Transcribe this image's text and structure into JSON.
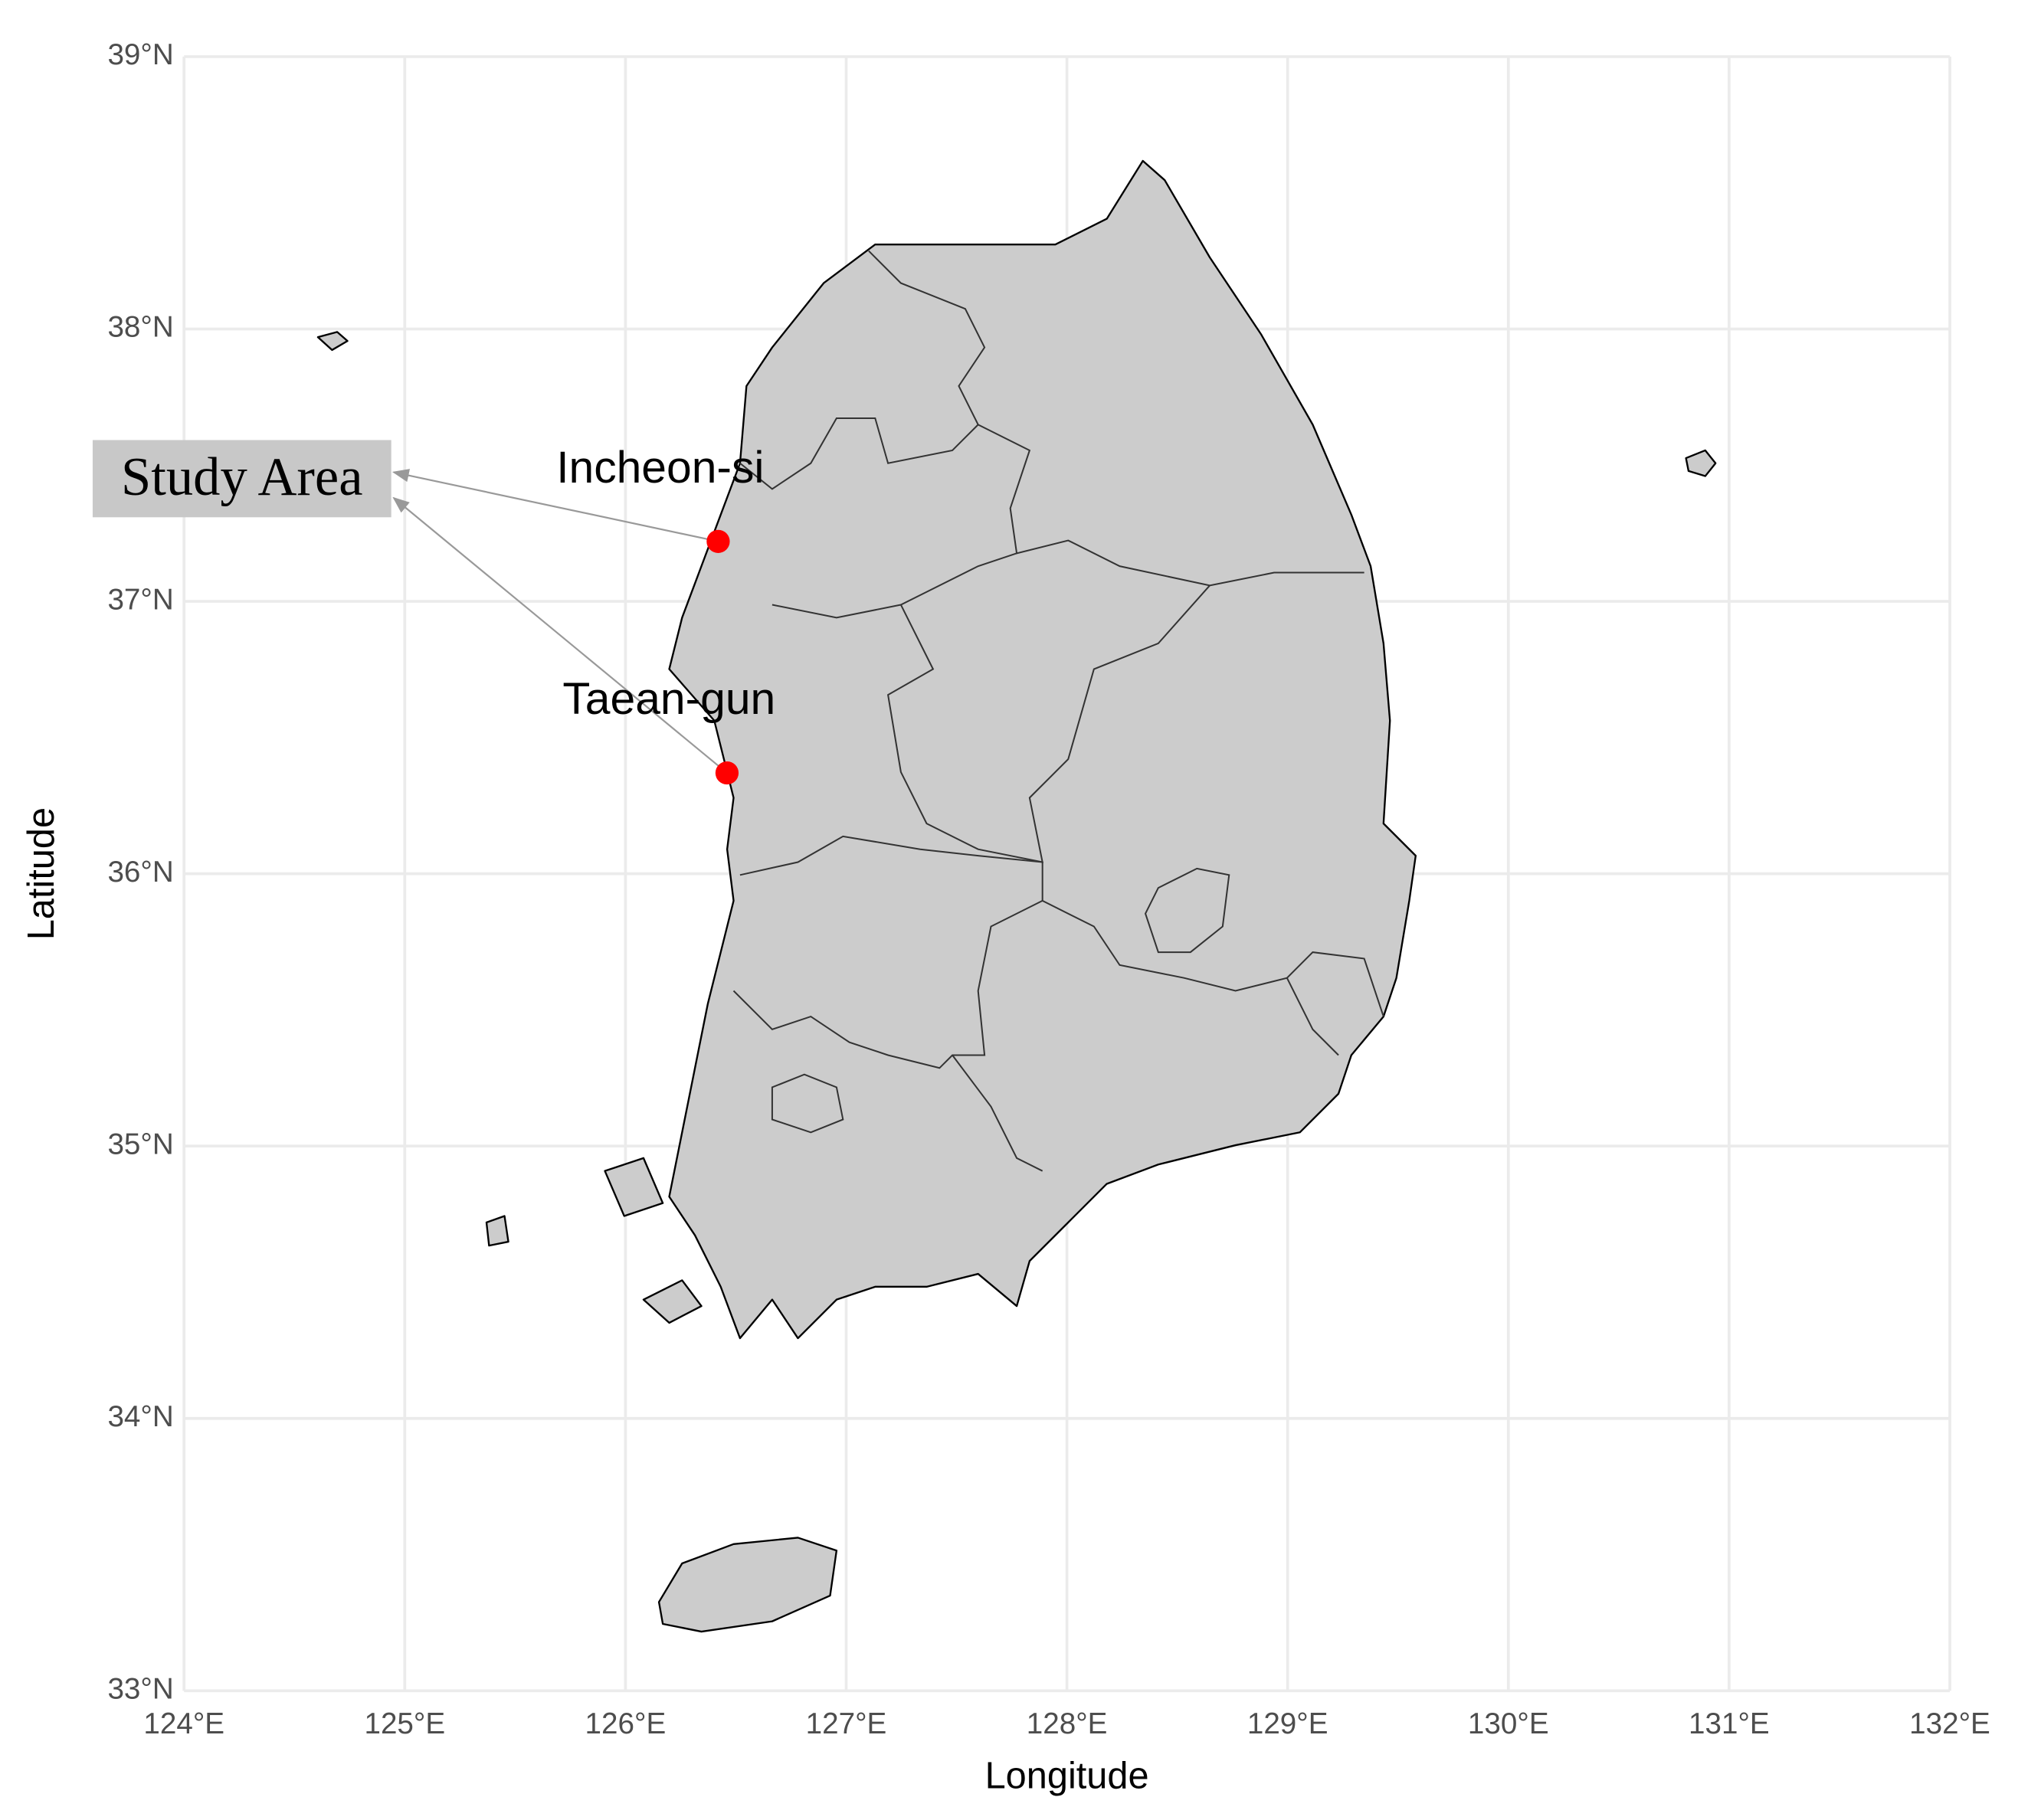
{
  "chart_data": {
    "type": "map",
    "xlabel": "Longitude",
    "ylabel": "Latitude",
    "xlim": [
      124,
      132
    ],
    "ylim": [
      33,
      39
    ],
    "xticks": [
      {
        "value": 124,
        "label": "124°E"
      },
      {
        "value": 125,
        "label": "125°E"
      },
      {
        "value": 126,
        "label": "126°E"
      },
      {
        "value": 127,
        "label": "127°E"
      },
      {
        "value": 128,
        "label": "128°E"
      },
      {
        "value": 129,
        "label": "129°E"
      },
      {
        "value": 130,
        "label": "130°E"
      },
      {
        "value": 131,
        "label": "131°E"
      },
      {
        "value": 132,
        "label": "132°E"
      }
    ],
    "yticks": [
      {
        "value": 33,
        "label": "33°N"
      },
      {
        "value": 34,
        "label": "34°N"
      },
      {
        "value": 35,
        "label": "35°N"
      },
      {
        "value": 36,
        "label": "36°N"
      },
      {
        "value": 37,
        "label": "37°N"
      },
      {
        "value": 38,
        "label": "38°N"
      },
      {
        "value": 39,
        "label": "39°N"
      }
    ],
    "grid": true,
    "labels": [
      "Incheon-si",
      "Taean-gun"
    ],
    "x": [
      126.42,
      126.46
    ],
    "y": [
      37.22,
      36.37
    ],
    "color": "#ff0000",
    "annotation": "Study Area"
  }
}
